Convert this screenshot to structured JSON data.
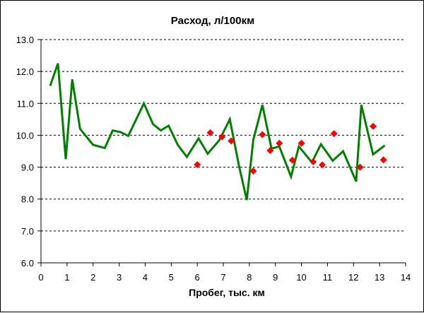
{
  "chart_data": {
    "type": "line",
    "title": "Расход, л/100км",
    "xlabel": "Пробег, тыс. км",
    "ylabel": "",
    "xlim": [
      0,
      14
    ],
    "ylim": [
      6.0,
      13.0
    ],
    "x_ticks": [
      "0",
      "1",
      "2",
      "3",
      "4",
      "5",
      "6",
      "7",
      "8",
      "9",
      "10",
      "11",
      "12",
      "13",
      "14"
    ],
    "y_ticks": [
      "6.0",
      "7.0",
      "8.0",
      "9.0",
      "10.0",
      "11.0",
      "12.0",
      "13.0"
    ],
    "grid": "horizontal dashed",
    "legend": "none",
    "series": [
      {
        "type": "line",
        "color": "#008000",
        "points": [
          [
            0.35,
            11.55
          ],
          [
            0.65,
            12.25
          ],
          [
            0.95,
            9.25
          ],
          [
            1.2,
            11.75
          ],
          [
            1.5,
            10.2
          ],
          [
            2.0,
            9.7
          ],
          [
            2.45,
            9.6
          ],
          [
            2.75,
            10.15
          ],
          [
            3.05,
            10.1
          ],
          [
            3.35,
            9.98
          ],
          [
            3.95,
            11.0
          ],
          [
            4.3,
            10.35
          ],
          [
            4.6,
            10.15
          ],
          [
            4.9,
            10.3
          ],
          [
            5.25,
            9.7
          ],
          [
            5.6,
            9.32
          ],
          [
            6.05,
            9.9
          ],
          [
            6.4,
            9.42
          ],
          [
            6.85,
            9.85
          ],
          [
            7.25,
            10.5
          ],
          [
            7.6,
            9.05
          ],
          [
            7.9,
            7.97
          ],
          [
            8.15,
            9.85
          ],
          [
            8.5,
            10.95
          ],
          [
            8.85,
            9.58
          ],
          [
            9.15,
            9.65
          ],
          [
            9.6,
            8.7
          ],
          [
            9.9,
            9.65
          ],
          [
            10.4,
            9.15
          ],
          [
            10.75,
            9.72
          ],
          [
            11.2,
            9.2
          ],
          [
            11.6,
            9.5
          ],
          [
            12.1,
            8.55
          ],
          [
            12.3,
            10.95
          ],
          [
            12.75,
            9.4
          ],
          [
            13.2,
            9.68
          ]
        ]
      },
      {
        "type": "scatter",
        "marker": "diamond",
        "color": "#ff0000",
        "points": [
          [
            6.0,
            9.08
          ],
          [
            6.5,
            10.08
          ],
          [
            6.95,
            9.95
          ],
          [
            7.3,
            9.82
          ],
          [
            8.15,
            8.88
          ],
          [
            8.5,
            10.02
          ],
          [
            8.8,
            9.52
          ],
          [
            9.15,
            9.75
          ],
          [
            9.65,
            9.22
          ],
          [
            10.0,
            9.75
          ],
          [
            10.45,
            9.17
          ],
          [
            10.8,
            9.07
          ],
          [
            11.25,
            10.05
          ],
          [
            12.25,
            9.0
          ],
          [
            12.75,
            10.28
          ],
          [
            13.15,
            9.23
          ]
        ]
      }
    ]
  }
}
